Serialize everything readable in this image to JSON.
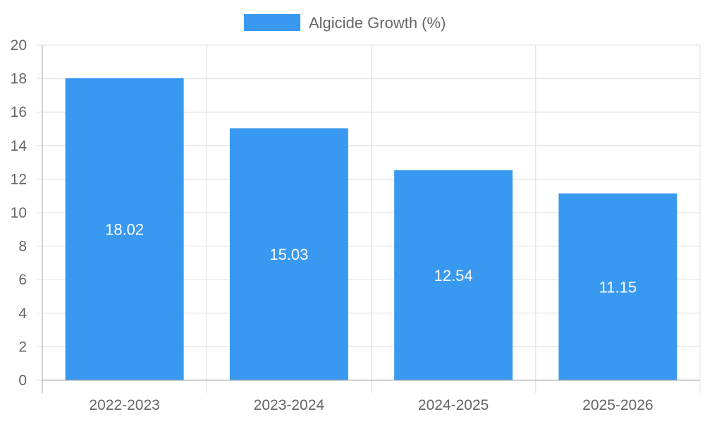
{
  "chart_data": {
    "type": "bar",
    "categories": [
      "2022-2023",
      "2023-2024",
      "2024-2025",
      "2025-2026"
    ],
    "series": [
      {
        "name": "Algicide Growth (%)",
        "values": [
          18.02,
          15.03,
          12.54,
          11.15
        ]
      }
    ],
    "data_labels": [
      "18.02",
      "15.03",
      "12.54",
      "11.15"
    ],
    "y_ticks": [
      "0",
      "2",
      "4",
      "6",
      "8",
      "10",
      "12",
      "14",
      "16",
      "18",
      "20"
    ],
    "ylim": [
      0,
      20
    ],
    "grid": true,
    "legend_position": "top-center",
    "colors": {
      "bar": "#3999f0",
      "grid": "#e0e0e0",
      "axis": "#a6a6a6",
      "text": "#666666"
    }
  }
}
